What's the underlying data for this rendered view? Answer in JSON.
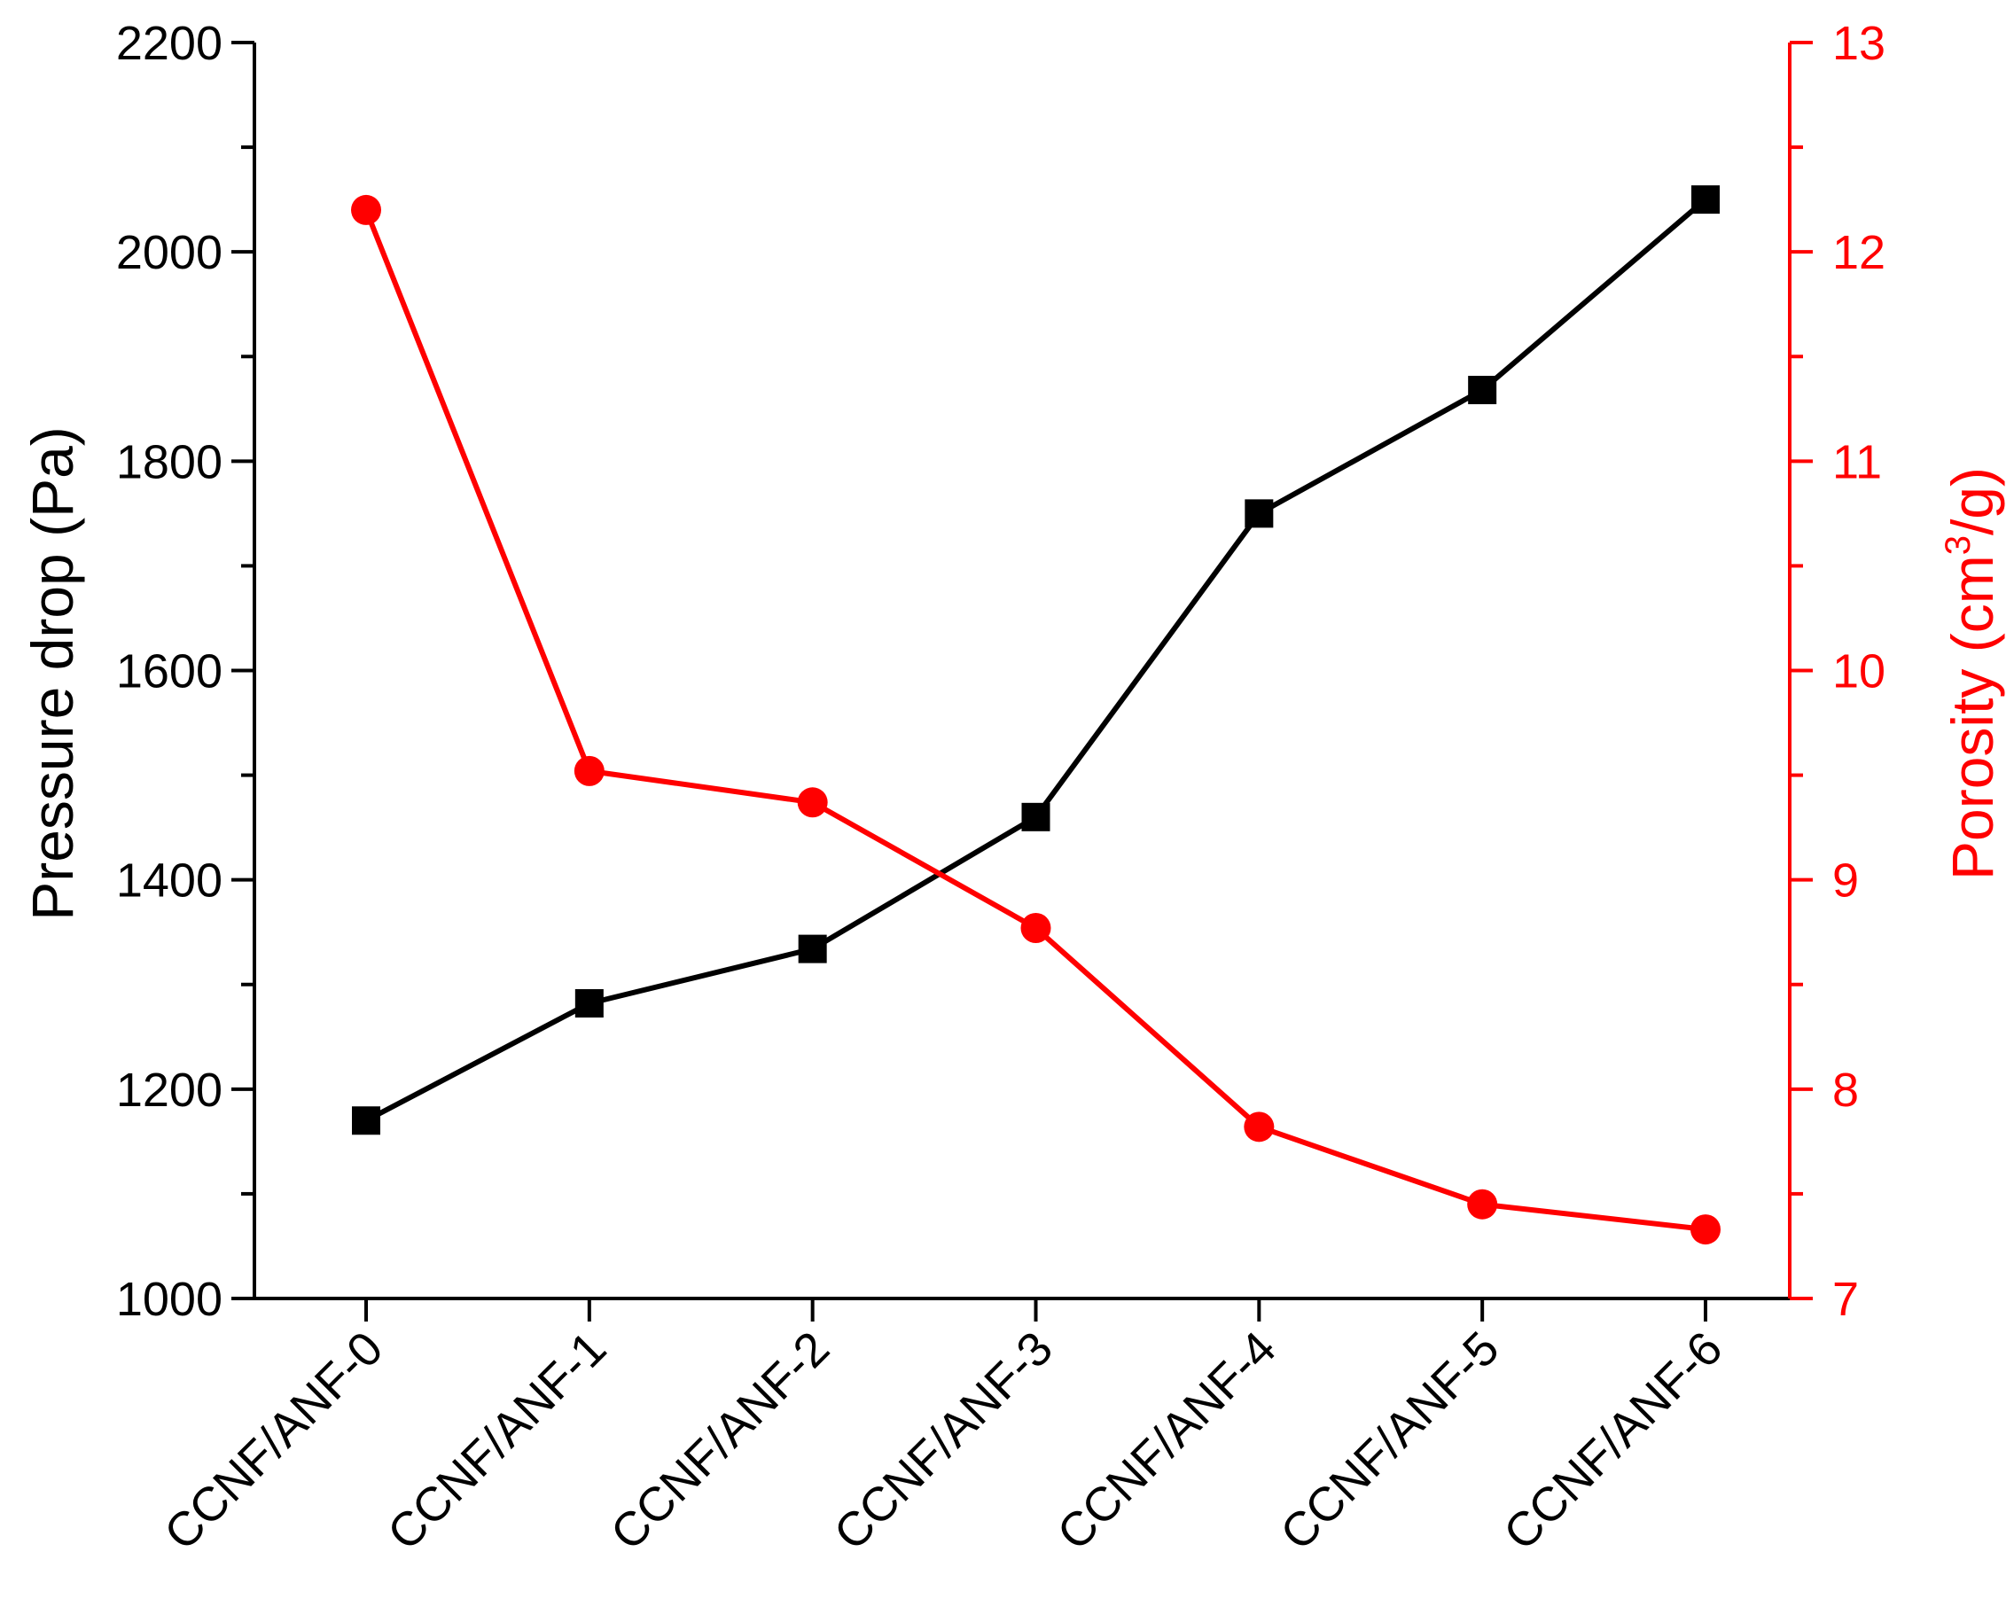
{
  "chart_data": {
    "type": "line",
    "categories": [
      "CCNF/ANF-0",
      "CCNF/ANF-1",
      "CCNF/ANF-2",
      "CCNF/ANF-3",
      "CCNF/ANF-4",
      "CCNF/ANF-5",
      "CCNF/ANF-6"
    ],
    "left_axis": {
      "label": "Pressure drop (Pa)",
      "range": [
        1000,
        2200
      ],
      "ticks": [
        1000,
        1200,
        1400,
        1600,
        1800,
        2000,
        2200
      ],
      "color": "#000000"
    },
    "right_axis": {
      "label_main": "Porosity (cm",
      "label_sup": "3",
      "label_tail": "/g)",
      "range": [
        7,
        13
      ],
      "ticks": [
        7,
        8,
        9,
        10,
        11,
        12,
        13
      ],
      "color": "#ff0000"
    },
    "series": [
      {
        "axis": "left",
        "marker": "square",
        "color": "#000000",
        "values": [
          1170,
          1282,
          1334,
          1460,
          1750,
          1868,
          2050
        ]
      },
      {
        "axis": "right",
        "marker": "circle",
        "color": "#ff0000",
        "values": [
          12.2,
          9.52,
          9.37,
          8.77,
          7.82,
          7.45,
          7.33
        ]
      }
    ],
    "grid": false,
    "legend": "none"
  }
}
